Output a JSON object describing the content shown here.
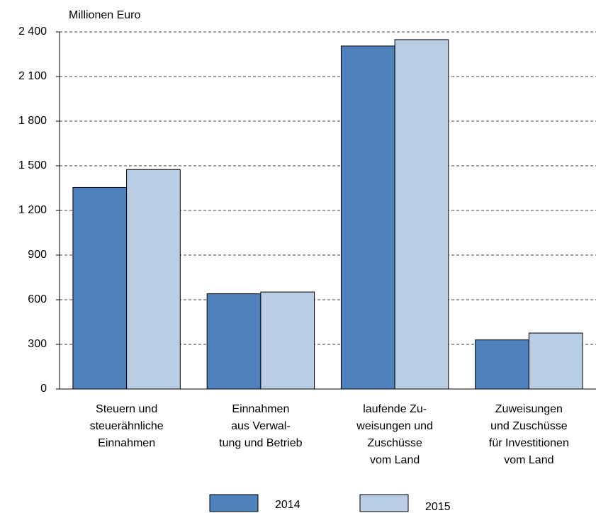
{
  "chart_data": {
    "type": "bar",
    "y_label": "Millionen Euro",
    "categories": [
      "Steuern und\nsteuerähnliche\nEinnahmen",
      "Einnahmen\naus Verwal-\ntung und Betrieb",
      "laufende Zu-\nweisungen und\nZuschüsse\nvom Land",
      "Zuweisungen\nund Zuschüsse\nfür Investitionen\nvom Land"
    ],
    "series": [
      {
        "name": "2014",
        "color": "#4f81bd",
        "values": [
          1355,
          640,
          2305,
          330
        ]
      },
      {
        "name": "2015",
        "color": "#b9cde5",
        "values": [
          1475,
          652,
          2348,
          376
        ]
      }
    ],
    "ylim": [
      0,
      2400
    ],
    "yticks": [
      0,
      300,
      600,
      900,
      {
        "value": 1200,
        "label": "1 200"
      },
      {
        "value": 1500,
        "label": "1 500"
      },
      {
        "value": 1800,
        "label": "1 800"
      },
      {
        "value": 2100,
        "label": "2 100"
      },
      {
        "value": 2400,
        "label": "2 400"
      }
    ],
    "grid": true
  }
}
